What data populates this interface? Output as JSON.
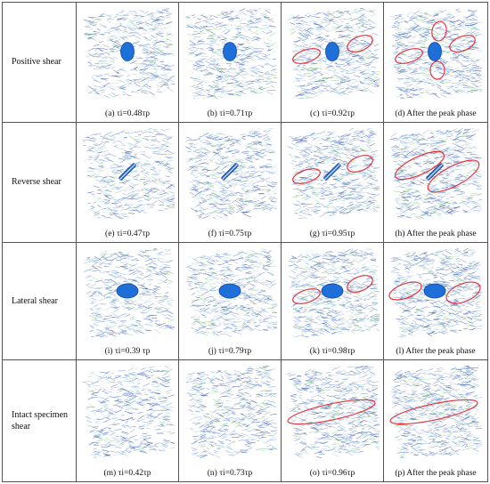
{
  "colors": {
    "crack_dark": "#1c3f9e",
    "crack_mid": "#4a7fd6",
    "crack_light": "#8fb6ea",
    "crack_green": "#6cc36a",
    "flaw_fill": "#1f6fd9",
    "highlight": "#e5343c",
    "border": "#555555"
  },
  "rows": [
    {
      "label": "Positive shear",
      "flaw": "ellipse",
      "panels": [
        {
          "caption": "(a) τi=0.48τp",
          "highlights": []
        },
        {
          "caption": "(b) τi=0.71τp",
          "highlights": []
        },
        {
          "caption": "(c) τi=0.92τp",
          "highlights": [
            "left-small",
            "right-small"
          ]
        },
        {
          "caption": "(d) After the peak phase",
          "highlights": [
            "left-small",
            "right-small",
            "top-small",
            "bottom-small"
          ]
        }
      ]
    },
    {
      "label": "Reverse shear",
      "flaw": "bar",
      "panels": [
        {
          "caption": "(e) τi=0.47τp",
          "highlights": []
        },
        {
          "caption": "(f) τi=0.75τp",
          "highlights": []
        },
        {
          "caption": "(g) τi=0.95τp",
          "highlights": [
            "left-small",
            "right-small"
          ]
        },
        {
          "caption": "(h) After the peak phase",
          "highlights": [
            "left-long",
            "right-long"
          ]
        }
      ]
    },
    {
      "label": "Lateral shear",
      "flaw": "disk",
      "panels": [
        {
          "caption": "(i) τi=0.39 τp",
          "highlights": []
        },
        {
          "caption": "(j) τi=0.79τp",
          "highlights": []
        },
        {
          "caption": "(k) τi=0.98τp",
          "highlights": [
            "left-small",
            "right-small"
          ]
        },
        {
          "caption": "(l) After the peak phase",
          "highlights": [
            "left-mid",
            "right-mid"
          ]
        }
      ]
    },
    {
      "label": "Intact specimen shear",
      "flaw": "none",
      "panels": [
        {
          "caption": "(m) τi=0.42τp",
          "highlights": []
        },
        {
          "caption": "(n) τi=0.73τp",
          "highlights": []
        },
        {
          "caption": "(o) τi=0.96τp",
          "highlights": [
            "band"
          ]
        },
        {
          "caption": "(p) After the peak phase",
          "highlights": [
            "band"
          ]
        }
      ]
    }
  ]
}
